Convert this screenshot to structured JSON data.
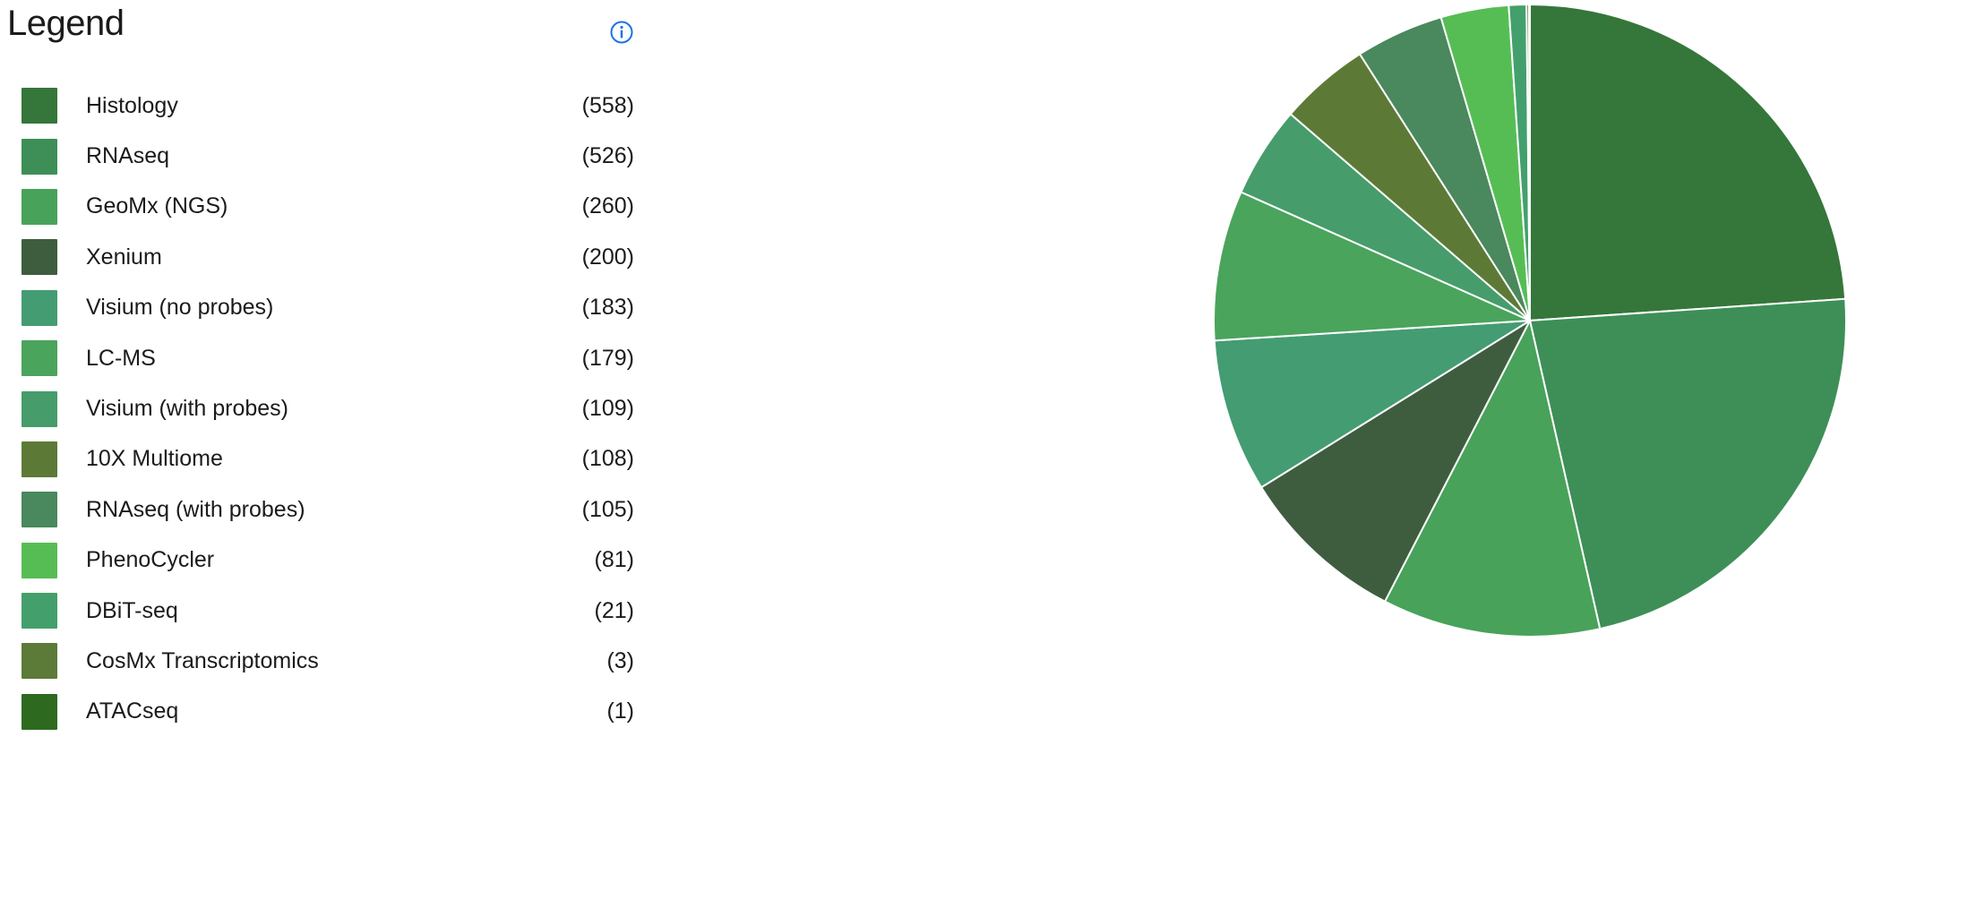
{
  "legend": {
    "title": "Legend",
    "info_icon": "info-icon"
  },
  "colors": {
    "info": "#1a73e8",
    "slice_border": "#ffffff"
  },
  "chart_data": {
    "type": "pie",
    "title": "",
    "legend_position": "left",
    "categories": [
      "Histology",
      "RNAseq",
      "GeoMx (NGS)",
      "Xenium",
      "Visium (no probes)",
      "LC-MS",
      "Visium (with probes)",
      "10X Multiome",
      "RNAseq (with probes)",
      "PhenoCycler",
      "DBiT-seq",
      "CosMx Transcriptomics",
      "ATACseq"
    ],
    "values": [
      558,
      526,
      260,
      200,
      183,
      179,
      109,
      108,
      105,
      81,
      21,
      3,
      1
    ],
    "count_labels": [
      "(558)",
      "(526)",
      "(260)",
      "(200)",
      "(183)",
      "(179)",
      "(109)",
      "(108)",
      "(105)",
      "(81)",
      "(21)",
      "(3)",
      "(1)"
    ],
    "colors": [
      "#35763a",
      "#3d8f57",
      "#48a25a",
      "#3e5d3f",
      "#449c72",
      "#4aa45c",
      "#469c6b",
      "#5c7a36",
      "#4a885d",
      "#56bd55",
      "#43a06c",
      "#5c7a38",
      "#2d6a1f"
    ]
  }
}
